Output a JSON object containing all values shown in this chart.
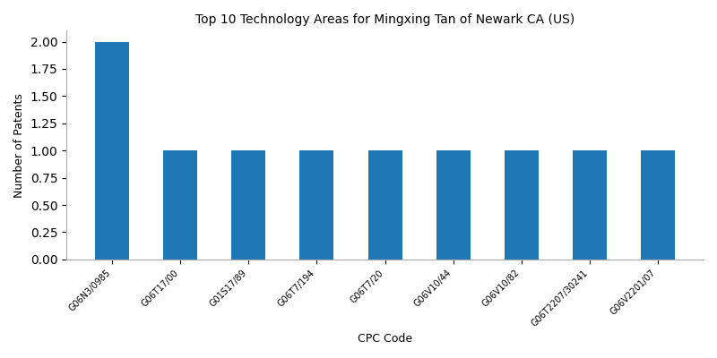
{
  "title": "Top 10 Technology Areas for Mingxing Tan of Newark CA (US)",
  "xlabel": "CPC Code",
  "ylabel": "Number of Patents",
  "categories": [
    "G06N3/0985",
    "G06T17/00",
    "G01S17/89",
    "G06T7/194",
    "G06T7/20",
    "G06V10/44",
    "G06V10/82",
    "G06T2207/30241",
    "G06V2201/07"
  ],
  "values": [
    2,
    1,
    1,
    1,
    1,
    1,
    1,
    1,
    1
  ],
  "bar_color": "#1f77b4",
  "bar_width": 0.5,
  "ylim": [
    0,
    2.1
  ],
  "yticks": [
    0.0,
    0.25,
    0.5,
    0.75,
    1.0,
    1.25,
    1.5,
    1.75,
    2.0
  ],
  "figsize": [
    8.0,
    4.0
  ],
  "dpi": 100,
  "title_fontsize": 10,
  "label_fontsize": 9,
  "tick_fontsize": 7,
  "axes_facecolor": "#ffffff",
  "fig_facecolor": "#ffffff"
}
